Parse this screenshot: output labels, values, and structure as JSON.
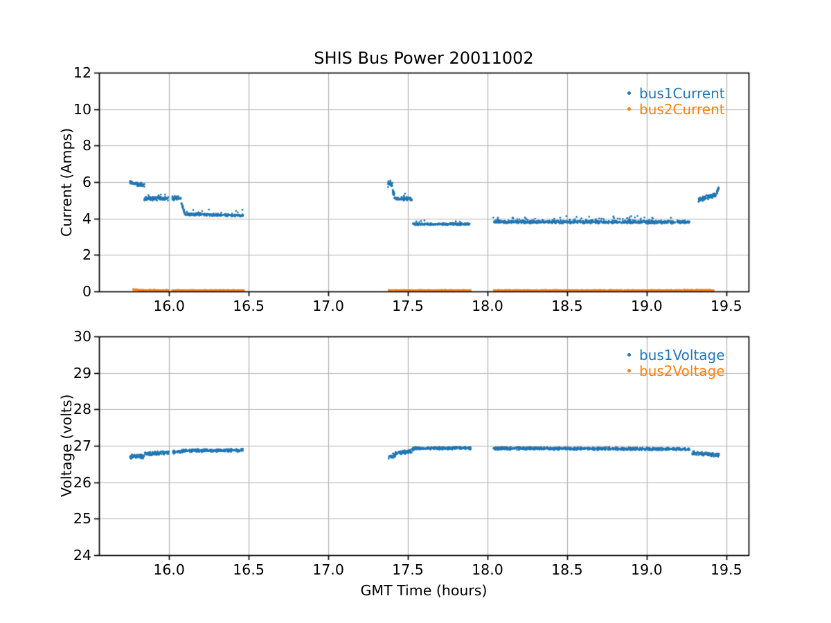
{
  "figure": {
    "background": "#ffffff",
    "spine_color": "#000000",
    "grid_color": "#b0b0b0"
  },
  "chart_data": [
    {
      "type": "scatter",
      "title": "SHIS Bus Power 20011002",
      "xlabel": "",
      "ylabel": "Current (Amps)",
      "xlim": [
        15.56,
        19.64
      ],
      "ylim": [
        0,
        12
      ],
      "xticks": [
        16.0,
        16.5,
        17.0,
        17.5,
        18.0,
        18.5,
        19.0,
        19.5
      ],
      "xtick_labels": [
        "16.0",
        "16.5",
        "17.0",
        "17.5",
        "18.0",
        "18.5",
        "19.0",
        "19.5"
      ],
      "yticks": [
        0,
        2,
        4,
        6,
        8,
        10,
        12
      ],
      "ytick_labels": [
        "0",
        "2",
        "4",
        "6",
        "8",
        "10",
        "12"
      ],
      "grid": true,
      "legend_position": "upper right",
      "series": [
        {
          "name": "bus1Current",
          "color": "#1f77b4",
          "marker": "dot",
          "segments": [
            {
              "x": [
                15.755,
                15.775
              ],
              "y": [
                6.0,
                5.95
              ],
              "noise": 0.1
            },
            {
              "x": [
                15.775,
                15.845
              ],
              "y": [
                5.92,
                5.83
              ],
              "noise": 0.12,
              "spike": {
                "p": 0.05,
                "mag": 0.18
              }
            },
            {
              "x": [
                15.845,
                16.0
              ],
              "y": [
                5.1,
                5.08
              ],
              "noise": 0.13,
              "spike": {
                "p": 0.04,
                "mag": 0.2
              }
            },
            {
              "x": [
                16.02,
                16.075
              ],
              "y": [
                5.12,
                5.1
              ],
              "noise": 0.14
            },
            {
              "x": [
                16.075,
                16.105
              ],
              "y": [
                4.85,
                4.15
              ],
              "noise": 0.12
            },
            {
              "x": [
                16.105,
                16.465
              ],
              "y": [
                4.24,
                4.16
              ],
              "noise": 0.08,
              "spike": {
                "p": 0.06,
                "mag": 0.22
              }
            },
            {
              "x": [
                17.375,
                17.405
              ],
              "y": [
                5.9,
                5.88
              ],
              "noise": 0.2
            },
            {
              "x": [
                17.405,
                17.418
              ],
              "y": [
                5.5,
                5.2
              ],
              "noise": 0.15
            },
            {
              "x": [
                17.418,
                17.525
              ],
              "y": [
                5.1,
                5.07
              ],
              "noise": 0.12,
              "spike": {
                "p": 0.04,
                "mag": 0.15
              }
            },
            {
              "x": [
                17.53,
                17.895
              ],
              "y": [
                3.69,
                3.7
              ],
              "noise": 0.07,
              "spike": {
                "p": 0.05,
                "mag": 0.18
              }
            },
            {
              "x": [
                18.035,
                19.27
              ],
              "y": [
                3.82,
                3.8
              ],
              "noise": 0.1,
              "spike": {
                "p": 0.07,
                "mag": 0.2
              }
            },
            {
              "x": [
                19.325,
                19.44
              ],
              "y": [
                5.05,
                5.3
              ],
              "noise": 0.16
            },
            {
              "x": [
                19.44,
                19.455
              ],
              "y": [
                5.45,
                5.7
              ],
              "noise": 0.12
            }
          ]
        },
        {
          "name": "bus2Current",
          "color": "#ff7f0e",
          "marker": "dot",
          "segments": [
            {
              "x": [
                15.775,
                15.805
              ],
              "y": [
                0.1,
                0.08
              ],
              "noise": 0.04
            },
            {
              "x": [
                15.805,
                16.0
              ],
              "y": [
                0.06,
                0.06
              ],
              "noise": 0.035
            },
            {
              "x": [
                16.02,
                16.47
              ],
              "y": [
                0.055,
                0.055
              ],
              "noise": 0.03
            },
            {
              "x": [
                17.38,
                17.895
              ],
              "y": [
                0.055,
                0.055
              ],
              "noise": 0.03
            },
            {
              "x": [
                18.035,
                19.22
              ],
              "y": [
                0.055,
                0.055
              ],
              "noise": 0.03
            },
            {
              "x": [
                19.23,
                19.42
              ],
              "y": [
                0.065,
                0.065
              ],
              "noise": 0.035
            }
          ]
        }
      ]
    },
    {
      "type": "scatter",
      "title": "",
      "xlabel": "GMT Time (hours)",
      "ylabel": "Voltage (volts)",
      "xlim": [
        15.56,
        19.64
      ],
      "ylim": [
        24,
        30
      ],
      "xticks": [
        16.0,
        16.5,
        17.0,
        17.5,
        18.0,
        18.5,
        19.0,
        19.5
      ],
      "xtick_labels": [
        "16.0",
        "16.5",
        "17.0",
        "17.5",
        "18.0",
        "18.5",
        "19.0",
        "19.5"
      ],
      "yticks": [
        24,
        25,
        26,
        27,
        28,
        29,
        30
      ],
      "ytick_labels": [
        "24",
        "25",
        "26",
        "27",
        "28",
        "29",
        "30"
      ],
      "grid": true,
      "legend_position": "upper right",
      "series": [
        {
          "name": "bus1Voltage",
          "color": "#1f77b4",
          "marker": "dot",
          "segments": [
            {
              "x": [
                15.755,
                15.845
              ],
              "y": [
                26.7,
                26.72
              ],
              "noise": 0.07
            },
            {
              "x": [
                15.845,
                16.0
              ],
              "y": [
                26.78,
                26.8
              ],
              "noise": 0.06
            },
            {
              "x": [
                16.02,
                16.075
              ],
              "y": [
                26.82,
                26.84
              ],
              "noise": 0.06
            },
            {
              "x": [
                16.075,
                16.465
              ],
              "y": [
                26.86,
                26.88
              ],
              "noise": 0.05
            },
            {
              "x": [
                17.375,
                17.42
              ],
              "y": [
                26.7,
                26.74
              ],
              "noise": 0.07
            },
            {
              "x": [
                17.42,
                17.53
              ],
              "y": [
                26.8,
                26.85
              ],
              "noise": 0.06
            },
            {
              "x": [
                17.53,
                17.895
              ],
              "y": [
                26.92,
                26.94
              ],
              "noise": 0.045
            },
            {
              "x": [
                18.035,
                19.27
              ],
              "y": [
                26.93,
                26.91
              ],
              "noise": 0.045
            },
            {
              "x": [
                19.28,
                19.455
              ],
              "y": [
                26.8,
                26.74
              ],
              "noise": 0.06
            }
          ]
        },
        {
          "name": "bus2Voltage",
          "color": "#ff7f0e",
          "marker": "dot",
          "segments": []
        }
      ]
    }
  ]
}
